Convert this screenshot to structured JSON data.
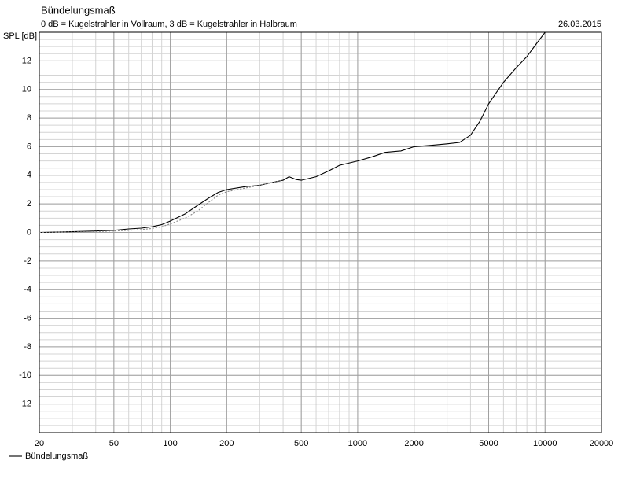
{
  "chart_data": {
    "type": "line",
    "title": "Bündelungsmaß",
    "subtitle": "0 dB = Kugelstrahler in Vollraum, 3 dB = Kugelstrahler in Halbraum",
    "date": "26.03.2015",
    "y_label": "SPL [dB]",
    "xscale": "log",
    "grid": true,
    "xlim": [
      20,
      20000
    ],
    "ylim": [
      -14,
      14
    ],
    "xticks": [
      20,
      50,
      100,
      200,
      500,
      1000,
      2000,
      5000,
      10000,
      20000
    ],
    "yticks": [
      -12,
      -10,
      -8,
      -6,
      -4,
      -2,
      0,
      2,
      4,
      6,
      8,
      10,
      12
    ],
    "legend": "bottom-left",
    "series": [
      {
        "name": "Bündelungsmaß",
        "color": "#000000",
        "style": "solid",
        "x": [
          20,
          30,
          40,
          50,
          60,
          70,
          80,
          90,
          100,
          120,
          140,
          160,
          180,
          200,
          250,
          300,
          350,
          400,
          430,
          470,
          500,
          600,
          700,
          800,
          1000,
          1200,
          1400,
          1700,
          2000,
          2500,
          3000,
          3500,
          4000,
          4500,
          5000,
          6000,
          7000,
          8000,
          9000,
          10000,
          15000,
          20000
        ],
        "values": [
          0,
          0.05,
          0.1,
          0.15,
          0.25,
          0.3,
          0.4,
          0.55,
          0.8,
          1.3,
          1.9,
          2.4,
          2.8,
          3.0,
          3.2,
          3.3,
          3.5,
          3.65,
          3.9,
          3.7,
          3.65,
          3.9,
          4.3,
          4.7,
          5.0,
          5.3,
          5.6,
          5.7,
          6.0,
          6.1,
          6.2,
          6.3,
          6.8,
          7.8,
          9.0,
          10.5,
          11.5,
          12.3,
          13.2,
          14,
          14,
          14
        ]
      },
      {
        "color": "#888888",
        "style": "dotted",
        "x": [
          20,
          30,
          40,
          50,
          60,
          70,
          80,
          90,
          100,
          120,
          140,
          160,
          180,
          200,
          250,
          300,
          350,
          400
        ],
        "values": [
          0,
          0.03,
          0.06,
          0.1,
          0.15,
          0.2,
          0.28,
          0.4,
          0.6,
          1.0,
          1.5,
          2.1,
          2.6,
          2.85,
          3.1,
          3.3,
          3.5,
          3.65
        ]
      }
    ]
  }
}
